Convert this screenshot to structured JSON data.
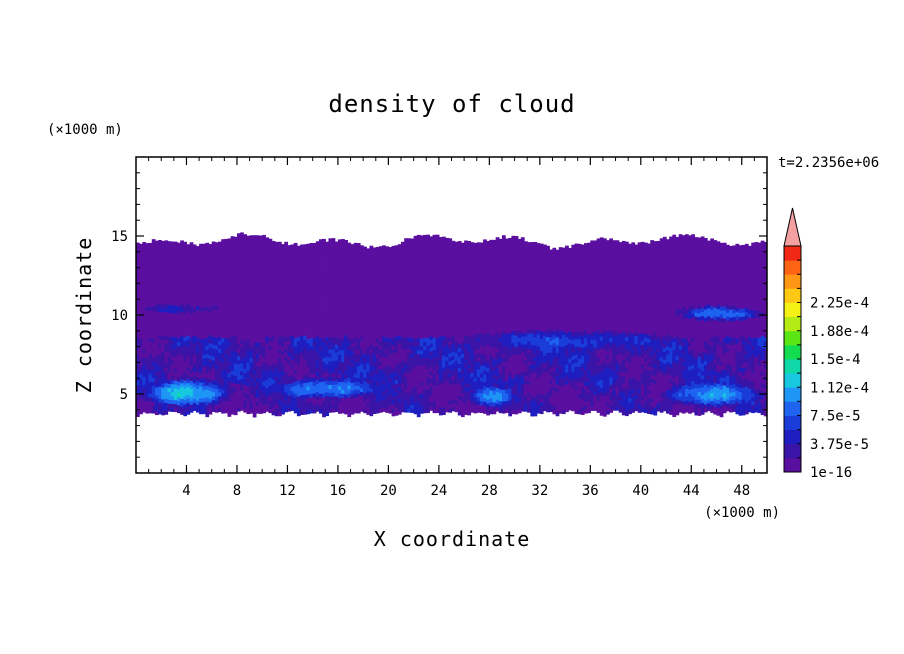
{
  "chart_data": {
    "type": "heatmap",
    "title": "density of cloud",
    "xlabel": "X coordinate",
    "ylabel": "Z coordinate",
    "x_unit": "(×1000 m)",
    "y_unit": "(×1000 m)",
    "time_label": "t=2.2356e+06",
    "xlim": [
      0,
      50
    ],
    "ylim": [
      0,
      20
    ],
    "x_ticks": [
      "4",
      "8",
      "12",
      "16",
      "20",
      "24",
      "28",
      "32",
      "36",
      "40",
      "44",
      "48"
    ],
    "x_tick_values": [
      4,
      8,
      12,
      16,
      20,
      24,
      28,
      32,
      36,
      40,
      44,
      48
    ],
    "y_ticks": [
      "5",
      "10",
      "15"
    ],
    "y_tick_values": [
      5,
      10,
      15
    ],
    "colorbar": {
      "labels": [
        "2.25e-4",
        "1.88e-4",
        "1.5e-4",
        "1.12e-4",
        "7.5e-5",
        "3.75e-5",
        "1e-16"
      ],
      "label_levels": [
        12,
        10,
        8,
        6,
        4,
        2,
        0
      ],
      "colors": [
        "#5a0fa0",
        "#3a14a6",
        "#1e1ec0",
        "#1a3cd8",
        "#1e64f0",
        "#1e96f5",
        "#18c8e0",
        "#10d8a8",
        "#14dc50",
        "#5ae614",
        "#b4eb14",
        "#f5f014",
        "#ffc814",
        "#ff9614",
        "#ff6414",
        "#f02814"
      ],
      "overflow_color": "#f4a0a0",
      "extend": "max"
    },
    "cloud_region": {
      "z_bottom_km": 3.5,
      "z_top_km": 14.8
    },
    "features": [
      {
        "x": [
          0,
          8
        ],
        "z": [
          4.0,
          6.0
        ],
        "level": 6
      },
      {
        "x": [
          10,
          20
        ],
        "z": [
          4.5,
          6.0
        ],
        "level": 5
      },
      {
        "x": [
          26,
          30
        ],
        "z": [
          4.0,
          5.5
        ],
        "level": 5
      },
      {
        "x": [
          24,
          44
        ],
        "z": [
          7.5,
          9.0
        ],
        "level": 3
      },
      {
        "x": [
          42,
          50
        ],
        "z": [
          9.5,
          10.5
        ],
        "level": 4
      },
      {
        "x": [
          41,
          50
        ],
        "z": [
          4.0,
          5.8
        ],
        "level": 5
      },
      {
        "x": [
          0,
          7
        ],
        "z": [
          10.0,
          10.6
        ],
        "level": 2
      }
    ]
  }
}
